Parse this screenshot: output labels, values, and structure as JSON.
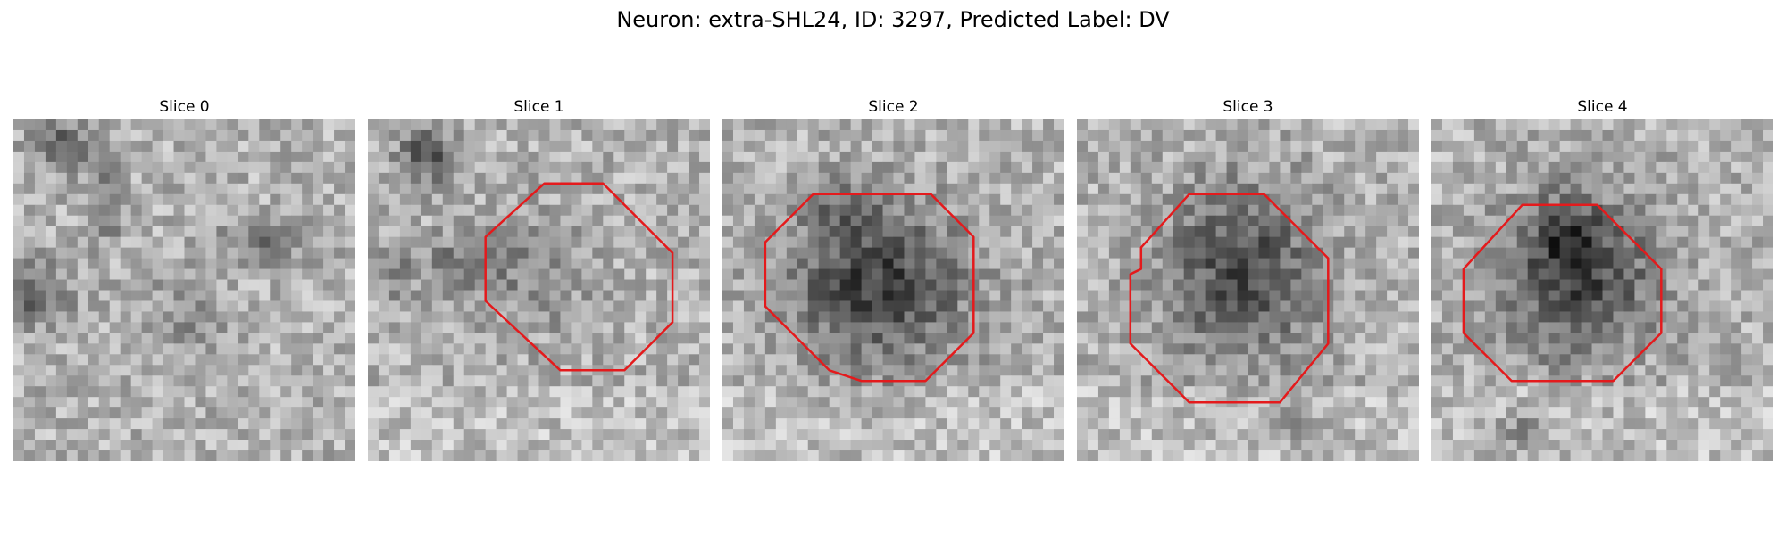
{
  "figure": {
    "title": "Neuron: extra-SHL24, ID: 3297, Predicted Label: DV"
  },
  "slices": [
    {
      "title": "Slice 0",
      "roi": false
    },
    {
      "title": "Slice 1",
      "roi": true
    },
    {
      "title": "Slice 2",
      "roi": true
    },
    {
      "title": "Slice 3",
      "roi": true
    },
    {
      "title": "Slice 4",
      "roi": true
    }
  ],
  "colors": {
    "roi_outline": "#e41a1c",
    "colormap": "gray"
  }
}
